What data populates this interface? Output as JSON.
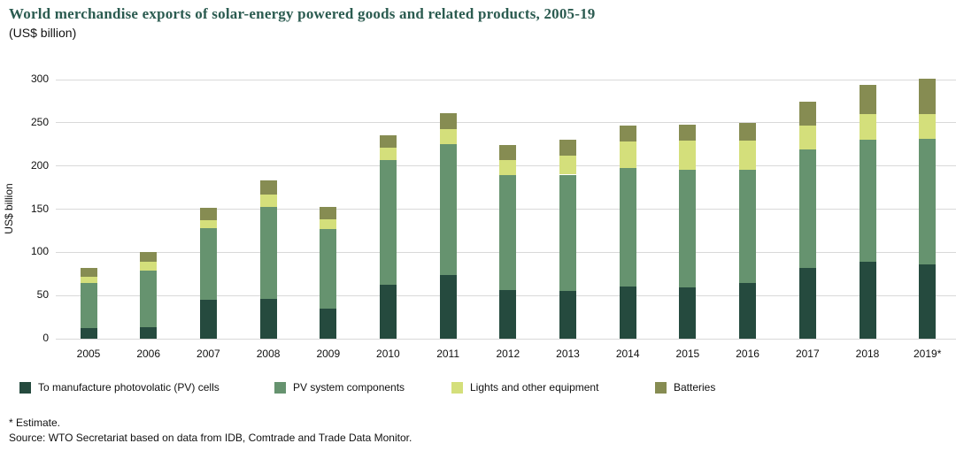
{
  "header": {
    "title": "World merchandise exports of solar-energy powered goods and related products, 2005-19",
    "subtitle": "(US$ billion)"
  },
  "chart_data": {
    "type": "bar",
    "stacked": true,
    "title": "World merchandise exports of solar-energy powered goods and related products, 2005-19",
    "xlabel": "",
    "ylabel": "US$ billion",
    "ylim": [
      0,
      300
    ],
    "yticks": [
      0,
      50,
      100,
      150,
      200,
      250,
      300
    ],
    "grid": true,
    "legend_position": "bottom",
    "categories": [
      "2005",
      "2006",
      "2007",
      "2008",
      "2009",
      "2010",
      "2011",
      "2012",
      "2013",
      "2014",
      "2015",
      "2016",
      "2017",
      "2018",
      "2019*"
    ],
    "series": [
      {
        "name": "To manufacture photovolatic (PV) cells",
        "color": "#254a3e",
        "values": [
          12,
          13,
          45,
          46,
          35,
          63,
          74,
          56,
          55,
          60,
          59,
          65,
          82,
          89,
          86
        ]
      },
      {
        "name": "PV system components",
        "color": "#66936f",
        "values": [
          53,
          66,
          83,
          107,
          92,
          144,
          151,
          133,
          135,
          138,
          137,
          131,
          137,
          141,
          145
        ]
      },
      {
        "name": "Lights and other equipment",
        "color": "#d4df7b",
        "values": [
          7,
          10,
          9,
          14,
          11,
          14,
          18,
          18,
          22,
          30,
          33,
          33,
          28,
          30,
          29
        ]
      },
      {
        "name": "Batteries",
        "color": "#868c52",
        "values": [
          10,
          11,
          15,
          16,
          15,
          15,
          18,
          17,
          18,
          19,
          19,
          21,
          28,
          34,
          41
        ]
      }
    ]
  },
  "footnotes": {
    "estimate": "* Estimate.",
    "source": "Source: WTO Secretariat based on data from IDB, Comtrade and Trade Data Monitor."
  },
  "colors": {
    "title": "#2b5b50",
    "gridline": "#d9d9d9"
  }
}
